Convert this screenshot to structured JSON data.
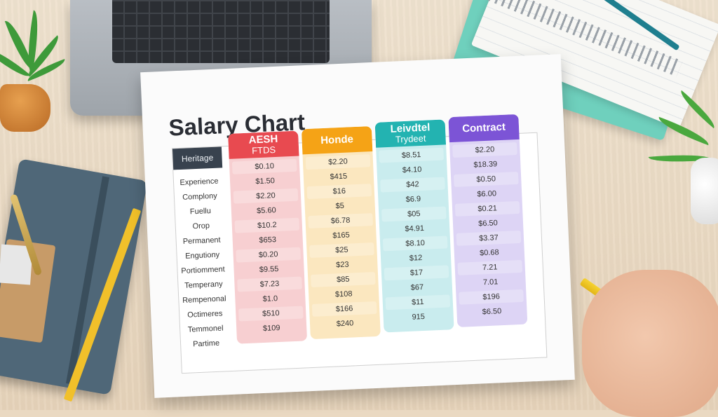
{
  "chart_data": {
    "type": "table",
    "title": "Salary Chart",
    "corner_header": "Heritage",
    "row_labels": [
      "Experience",
      "Complony",
      "Fuellu",
      "Orop",
      "Permanent",
      "Engutiony",
      "Portiomment",
      "Temperany",
      "Rempenonal",
      "Octimeres",
      "Temmonel",
      "Partime"
    ],
    "columns": [
      {
        "header": "AESH",
        "subheader": "FTDS",
        "color": "#e84a50",
        "cell_color": "#f7cfd1",
        "values": [
          "$0.10",
          "$1.50",
          "$2.20",
          "$5.60",
          "$10.2",
          "$653",
          "$0.20",
          "$9.55",
          "$7.23",
          "$1.0",
          "$510",
          "$109"
        ]
      },
      {
        "header": "Honde",
        "subheader": "",
        "color": "#f5a316",
        "cell_color": "#fbe7bf",
        "values": [
          "$2.20",
          "$415",
          "$16",
          "$5",
          "$6.78",
          "$165",
          "$25",
          "$23",
          "$85",
          "$108",
          "$166",
          "$240"
        ]
      },
      {
        "header": "Leivdtel",
        "subheader": "Trydeet",
        "color": "#23b3b1",
        "cell_color": "#c9ecee",
        "values": [
          "$8.51",
          "$4.10",
          "$42",
          "$6.9",
          "$05",
          "$4.91",
          "$8.10",
          "$12",
          "$17",
          "$67",
          "$11",
          "915"
        ]
      },
      {
        "header": "Contract",
        "subheader": "",
        "color": "#7c54d6",
        "cell_color": "#ddd4f5",
        "values": [
          "$2.20",
          "$18.39",
          "$0.50",
          "$6.00",
          "$0.21",
          "$6.50",
          "$3.37",
          "$0.68",
          "7.21",
          "7.01",
          "$196",
          "$6.50"
        ]
      }
    ]
  }
}
